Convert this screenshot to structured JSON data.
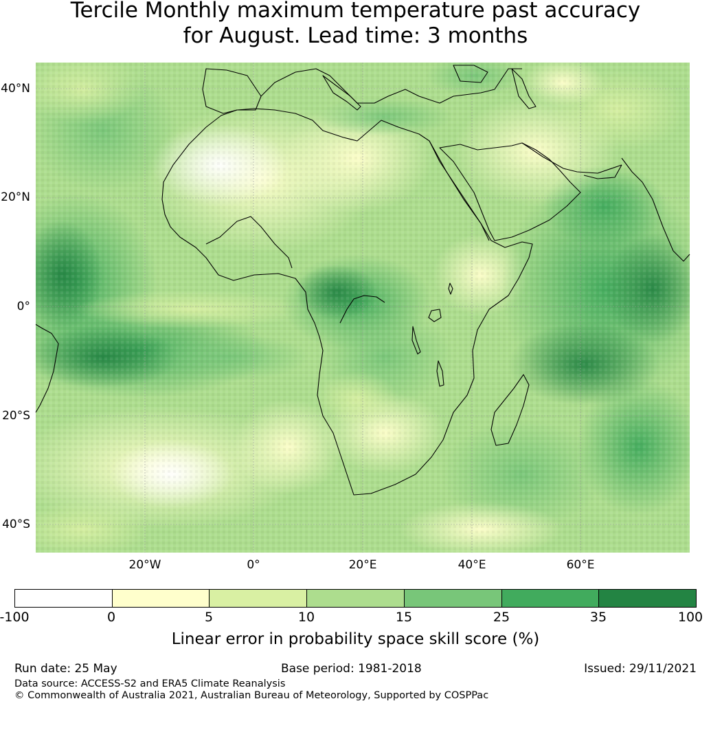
{
  "title": {
    "line1": "Tercile Monthly maximum temperature past accuracy",
    "line2": "for August. Lead time: 3 months"
  },
  "map": {
    "lat_labels": [
      "40°N",
      "20°N",
      "0°",
      "20°S",
      "40°S"
    ],
    "lon_labels": [
      "20°W",
      "0°",
      "20°E",
      "40°E",
      "60°E"
    ],
    "extent": {
      "lon_min": -40,
      "lon_max": 80,
      "lat_min": -45,
      "lat_max": 45
    },
    "gridlines": true
  },
  "colorbar": {
    "ticks": [
      "-100",
      "0",
      "5",
      "10",
      "15",
      "25",
      "35",
      "100"
    ],
    "colors": [
      "#ffffff",
      "#ffffcc",
      "#d9f0a3",
      "#addd8e",
      "#78c679",
      "#41ab5d",
      "#238443"
    ],
    "label": "Linear error in probability space skill score (%)"
  },
  "footer": {
    "run_date": "Run date: 25 May",
    "base_period": "Base period: 1981-2018",
    "issued": "Issued: 29/11/2021",
    "data_source": "Data source: ACCESS-S2 and ERA5 Climate Reanalysis",
    "copyright": "© Commonwealth of Australia 2021, Australian Bureau of Meteorology, Supported by COSPPac"
  }
}
